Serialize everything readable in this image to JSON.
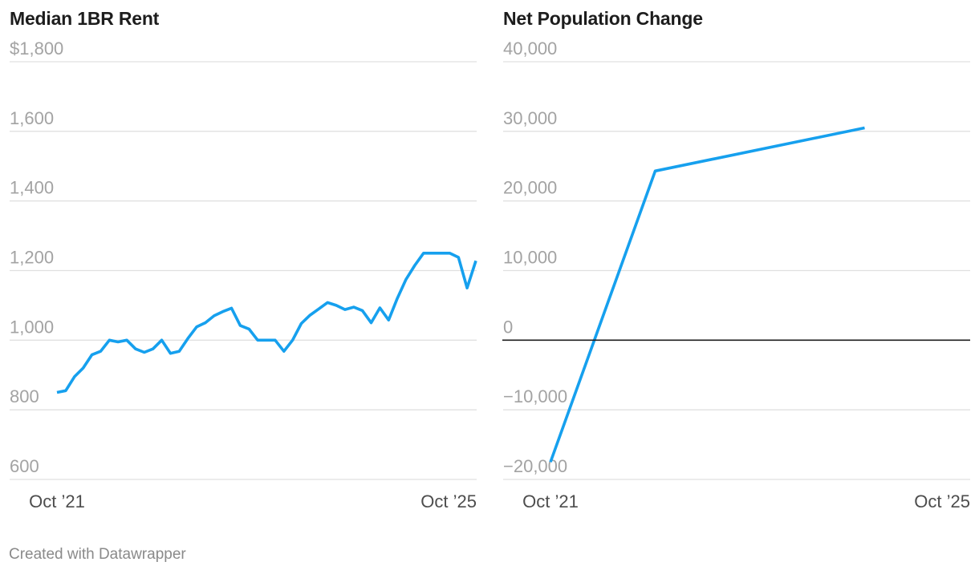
{
  "footer": "Created with Datawrapper",
  "colors": {
    "line": "#16a0ee",
    "grid": "#e0e0e0",
    "zero_line": "#1d1d1d"
  },
  "chart_data": [
    {
      "type": "line",
      "title": "Median 1BR Rent",
      "ylim": [
        600,
        1800
      ],
      "y_ticks": [
        600,
        800,
        1000,
        1200,
        1400,
        1600,
        1800
      ],
      "y_tick_labels": [
        "600",
        "800",
        "1,000",
        "1,200",
        "1,400",
        "1,600",
        "$1,800"
      ],
      "x_tick_labels": [
        "Oct ’21",
        "Oct ’25"
      ],
      "xlim": [
        "2021-10",
        "2025-10"
      ],
      "grid": true,
      "series": [
        {
          "x": [
            "2021-10",
            "2021-11",
            "2021-12",
            "2022-01",
            "2022-02",
            "2022-03",
            "2022-04",
            "2022-05",
            "2022-06",
            "2022-07",
            "2022-08",
            "2022-09",
            "2022-10",
            "2022-11",
            "2022-12",
            "2023-01",
            "2023-02",
            "2023-03",
            "2023-04",
            "2023-05",
            "2023-06",
            "2023-07",
            "2023-08",
            "2023-09",
            "2023-10",
            "2023-11",
            "2023-12",
            "2024-01",
            "2024-02",
            "2024-03",
            "2024-04",
            "2024-05",
            "2024-06",
            "2024-07",
            "2024-08",
            "2024-09",
            "2024-10",
            "2024-11",
            "2024-12",
            "2025-01",
            "2025-02",
            "2025-03",
            "2025-04",
            "2025-05",
            "2025-06",
            "2025-07",
            "2025-08",
            "2025-09",
            "2025-10"
          ],
          "values": [
            850,
            855,
            895,
            920,
            958,
            968,
            1000,
            995,
            1000,
            975,
            965,
            975,
            1000,
            962,
            968,
            1005,
            1038,
            1050,
            1070,
            1082,
            1092,
            1042,
            1032,
            1000,
            1000,
            1000,
            968,
            1000,
            1048,
            1072,
            1090,
            1108,
            1100,
            1088,
            1095,
            1085,
            1050,
            1093,
            1058,
            1120,
            1175,
            1215,
            1250,
            1250,
            1250,
            1250,
            1238,
            1150,
            1228
          ]
        }
      ]
    },
    {
      "type": "line",
      "title": "Net Population Change",
      "ylim": [
        -20000,
        40000
      ],
      "y_ticks": [
        -20000,
        -10000,
        0,
        10000,
        20000,
        30000,
        40000
      ],
      "y_tick_labels": [
        "−20,000",
        "−10,000",
        "0",
        "10,000",
        "20,000",
        "30,000",
        "40,000"
      ],
      "x_tick_labels": [
        "Oct ’21",
        "Oct ’25"
      ],
      "xlim": [
        "2021-10",
        "2025-10"
      ],
      "grid": true,
      "series": [
        {
          "x": [
            "2021-10",
            "2022-10",
            "2024-10"
          ],
          "values": [
            -17500,
            24300,
            30500
          ]
        }
      ]
    }
  ]
}
